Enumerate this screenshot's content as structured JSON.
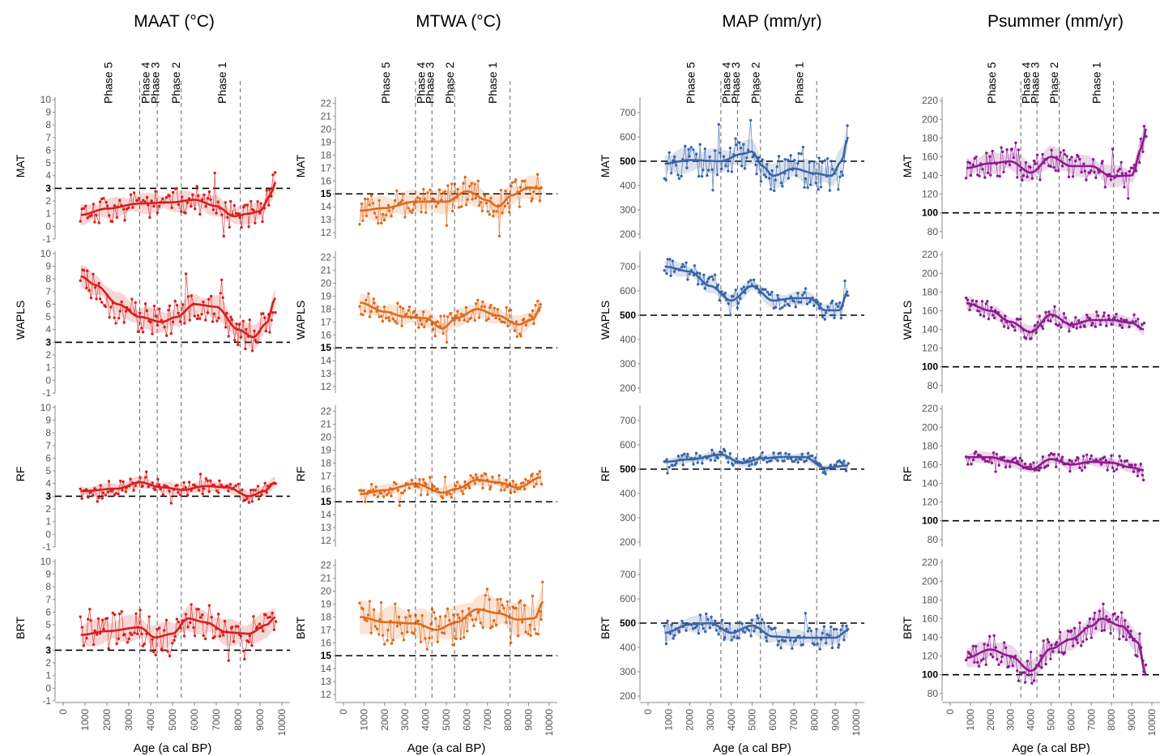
{
  "phases": [
    "Phase 5",
    "Phase 4",
    "Phase 3",
    "Phase 2",
    "Phase 1"
  ],
  "phase_boundaries": [
    3500,
    4300,
    5400,
    8100
  ],
  "rows": [
    "MAT",
    "WAPLS",
    "RF",
    "BRT"
  ],
  "x_axis": {
    "label": "Age (a cal BP)",
    "range": [
      0,
      10000
    ],
    "ticks": [
      0,
      1000,
      2000,
      3000,
      4000,
      5000,
      6000,
      7000,
      8000,
      9000,
      10000
    ]
  },
  "chart_data": [
    {
      "title": "MAAT (°C)",
      "color": "#d81e1e",
      "y_ticks": [
        -1,
        0,
        1,
        2,
        3,
        4,
        5,
        6,
        7,
        8,
        9,
        10
      ],
      "ylim": [
        -1,
        10.5
      ],
      "reference": 3,
      "series": [
        {
          "row": "MAT",
          "smooth": [
            [
              800,
              0.9
            ],
            [
              2000,
              1.4
            ],
            [
              3500,
              1.8
            ],
            [
              5000,
              1.9
            ],
            [
              6000,
              2.1
            ],
            [
              7000,
              1.6
            ],
            [
              7800,
              0.8
            ],
            [
              8500,
              1.0
            ],
            [
              9000,
              1.2
            ],
            [
              9500,
              2.5
            ],
            [
              9700,
              3.5
            ]
          ],
          "band": 0.7,
          "seed": 11
        },
        {
          "row": "WAPLS",
          "smooth": [
            [
              800,
              8.2
            ],
            [
              1500,
              7.5
            ],
            [
              2500,
              6.0
            ],
            [
              3500,
              5.0
            ],
            [
              4500,
              4.6
            ],
            [
              5200,
              5.0
            ],
            [
              6000,
              6.0
            ],
            [
              7000,
              5.8
            ],
            [
              8000,
              4.0
            ],
            [
              8700,
              3.4
            ],
            [
              9300,
              4.5
            ],
            [
              9700,
              6.5
            ]
          ],
          "band": 0.8,
          "seed": 23
        },
        {
          "row": "RF",
          "smooth": [
            [
              800,
              3.4
            ],
            [
              2500,
              3.6
            ],
            [
              3500,
              4.1
            ],
            [
              4500,
              3.7
            ],
            [
              5500,
              3.5
            ],
            [
              6500,
              3.8
            ],
            [
              7500,
              3.7
            ],
            [
              8500,
              3.0
            ],
            [
              9200,
              3.4
            ],
            [
              9700,
              4.1
            ]
          ],
          "band": 0.4,
          "seed": 37
        },
        {
          "row": "BRT",
          "smooth": [
            [
              800,
              4.2
            ],
            [
              2000,
              4.5
            ],
            [
              3500,
              4.8
            ],
            [
              4200,
              4.0
            ],
            [
              5000,
              4.3
            ],
            [
              5700,
              5.5
            ],
            [
              6500,
              5.2
            ],
            [
              7500,
              4.4
            ],
            [
              8500,
              4.3
            ],
            [
              9300,
              5.0
            ],
            [
              9700,
              5.6
            ]
          ],
          "band": 0.9,
          "seed": 41
        }
      ]
    },
    {
      "title": "MTWA (°C)",
      "color": "#e06a1c",
      "y_ticks": [
        12,
        13,
        14,
        15,
        16,
        17,
        18,
        19,
        20,
        21,
        22
      ],
      "ylim": [
        11.5,
        22.8
      ],
      "reference": 15,
      "series": [
        {
          "row": "MAT",
          "smooth": [
            [
              800,
              13.7
            ],
            [
              2000,
              13.9
            ],
            [
              3500,
              14.4
            ],
            [
              5000,
              14.4
            ],
            [
              6000,
              15.2
            ],
            [
              7000,
              14.5
            ],
            [
              7500,
              14.0
            ],
            [
              8200,
              14.9
            ],
            [
              9000,
              15.5
            ],
            [
              9600,
              15.4
            ]
          ],
          "band": 0.8,
          "seed": 53
        },
        {
          "row": "WAPLS",
          "smooth": [
            [
              800,
              18.5
            ],
            [
              2000,
              17.8
            ],
            [
              3000,
              17.4
            ],
            [
              4000,
              17.3
            ],
            [
              4800,
              16.5
            ],
            [
              5500,
              17.3
            ],
            [
              6500,
              18.0
            ],
            [
              7500,
              17.5
            ],
            [
              8500,
              16.8
            ],
            [
              9200,
              17.2
            ],
            [
              9600,
              18.2
            ]
          ],
          "band": 0.6,
          "seed": 67
        },
        {
          "row": "RF",
          "smooth": [
            [
              800,
              15.6
            ],
            [
              2000,
              15.9
            ],
            [
              3500,
              16.4
            ],
            [
              4800,
              15.7
            ],
            [
              5500,
              16.0
            ],
            [
              6500,
              16.7
            ],
            [
              7500,
              16.5
            ],
            [
              8500,
              16.1
            ],
            [
              9600,
              16.9
            ]
          ],
          "band": 0.4,
          "seed": 71
        },
        {
          "row": "BRT",
          "smooth": [
            [
              800,
              18.0
            ],
            [
              2000,
              17.6
            ],
            [
              3500,
              17.5
            ],
            [
              4500,
              17.0
            ],
            [
              5500,
              17.6
            ],
            [
              6500,
              18.6
            ],
            [
              7500,
              18.3
            ],
            [
              8500,
              17.8
            ],
            [
              9300,
              17.9
            ],
            [
              9700,
              19.2
            ]
          ],
          "band": 1.1,
          "seed": 83
        }
      ]
    },
    {
      "title": "MAP (mm/yr)",
      "color": "#3a64a8",
      "y_ticks": [
        200,
        300,
        400,
        500,
        600,
        700
      ],
      "ylim": [
        180,
        780
      ],
      "reference": 500,
      "series": [
        {
          "row": "MAT",
          "smooth": [
            [
              800,
              490
            ],
            [
              2000,
              505
            ],
            [
              3500,
              500
            ],
            [
              4500,
              530
            ],
            [
              5000,
              540
            ],
            [
              5500,
              480
            ],
            [
              6000,
              440
            ],
            [
              7000,
              470
            ],
            [
              8000,
              450
            ],
            [
              8800,
              440
            ],
            [
              9300,
              500
            ],
            [
              9600,
              600
            ]
          ],
          "band": 45,
          "seed": 97
        },
        {
          "row": "WAPLS",
          "smooth": [
            [
              800,
              700
            ],
            [
              2000,
              680
            ],
            [
              3000,
              620
            ],
            [
              4000,
              560
            ],
            [
              5000,
              620
            ],
            [
              6000,
              560
            ],
            [
              7000,
              570
            ],
            [
              7800,
              570
            ],
            [
              8500,
              520
            ],
            [
              9200,
              520
            ],
            [
              9600,
              600
            ]
          ],
          "band": 25,
          "seed": 101
        },
        {
          "row": "RF",
          "smooth": [
            [
              800,
              530
            ],
            [
              2000,
              540
            ],
            [
              3500,
              560
            ],
            [
              4500,
              525
            ],
            [
              5500,
              545
            ],
            [
              6500,
              550
            ],
            [
              7500,
              550
            ],
            [
              8500,
              505
            ],
            [
              9600,
              515
            ]
          ],
          "band": 15,
          "seed": 113
        },
        {
          "row": "BRT",
          "smooth": [
            [
              800,
              460
            ],
            [
              2000,
              495
            ],
            [
              3000,
              500
            ],
            [
              4000,
              460
            ],
            [
              5000,
              490
            ],
            [
              6000,
              445
            ],
            [
              7000,
              440
            ],
            [
              8000,
              440
            ],
            [
              9000,
              440
            ],
            [
              9600,
              470
            ]
          ],
          "band": 30,
          "seed": 127
        }
      ]
    },
    {
      "title": "Psummer (mm/yr)",
      "color": "#8e1a8e",
      "y_ticks": [
        80,
        100,
        120,
        140,
        160,
        180,
        200,
        220
      ],
      "ylim": [
        72,
        228
      ],
      "reference": 100,
      "series": [
        {
          "row": "MAT",
          "smooth": [
            [
              800,
              148
            ],
            [
              2000,
              153
            ],
            [
              3000,
              155
            ],
            [
              4000,
              143
            ],
            [
              5000,
              160
            ],
            [
              6000,
              150
            ],
            [
              7000,
              150
            ],
            [
              8000,
              139
            ],
            [
              9000,
              140
            ],
            [
              9500,
              170
            ],
            [
              9700,
              190
            ]
          ],
          "band": 10,
          "seed": 131
        },
        {
          "row": "WAPLS",
          "smooth": [
            [
              800,
              168
            ],
            [
              2000,
              160
            ],
            [
              3000,
              148
            ],
            [
              4000,
              137
            ],
            [
              5000,
              156
            ],
            [
              6000,
              145
            ],
            [
              7000,
              150
            ],
            [
              8000,
              150
            ],
            [
              9000,
              147
            ],
            [
              9600,
              140
            ]
          ],
          "band": 6,
          "seed": 149
        },
        {
          "row": "RF",
          "smooth": [
            [
              800,
              168
            ],
            [
              2000,
              168
            ],
            [
              3000,
              163
            ],
            [
              4000,
              155
            ],
            [
              5000,
              166
            ],
            [
              6000,
              160
            ],
            [
              7000,
              163
            ],
            [
              8000,
              162
            ],
            [
              9000,
              157
            ],
            [
              9600,
              154
            ]
          ],
          "band": 5,
          "seed": 157
        },
        {
          "row": "BRT",
          "smooth": [
            [
              800,
              118
            ],
            [
              2000,
              127
            ],
            [
              3000,
              120
            ],
            [
              4000,
              104
            ],
            [
              5000,
              128
            ],
            [
              6000,
              138
            ],
            [
              7000,
              152
            ],
            [
              7500,
              160
            ],
            [
              8500,
              152
            ],
            [
              9300,
              135
            ],
            [
              9700,
              100
            ]
          ],
          "band": 10,
          "seed": 167
        }
      ]
    }
  ]
}
